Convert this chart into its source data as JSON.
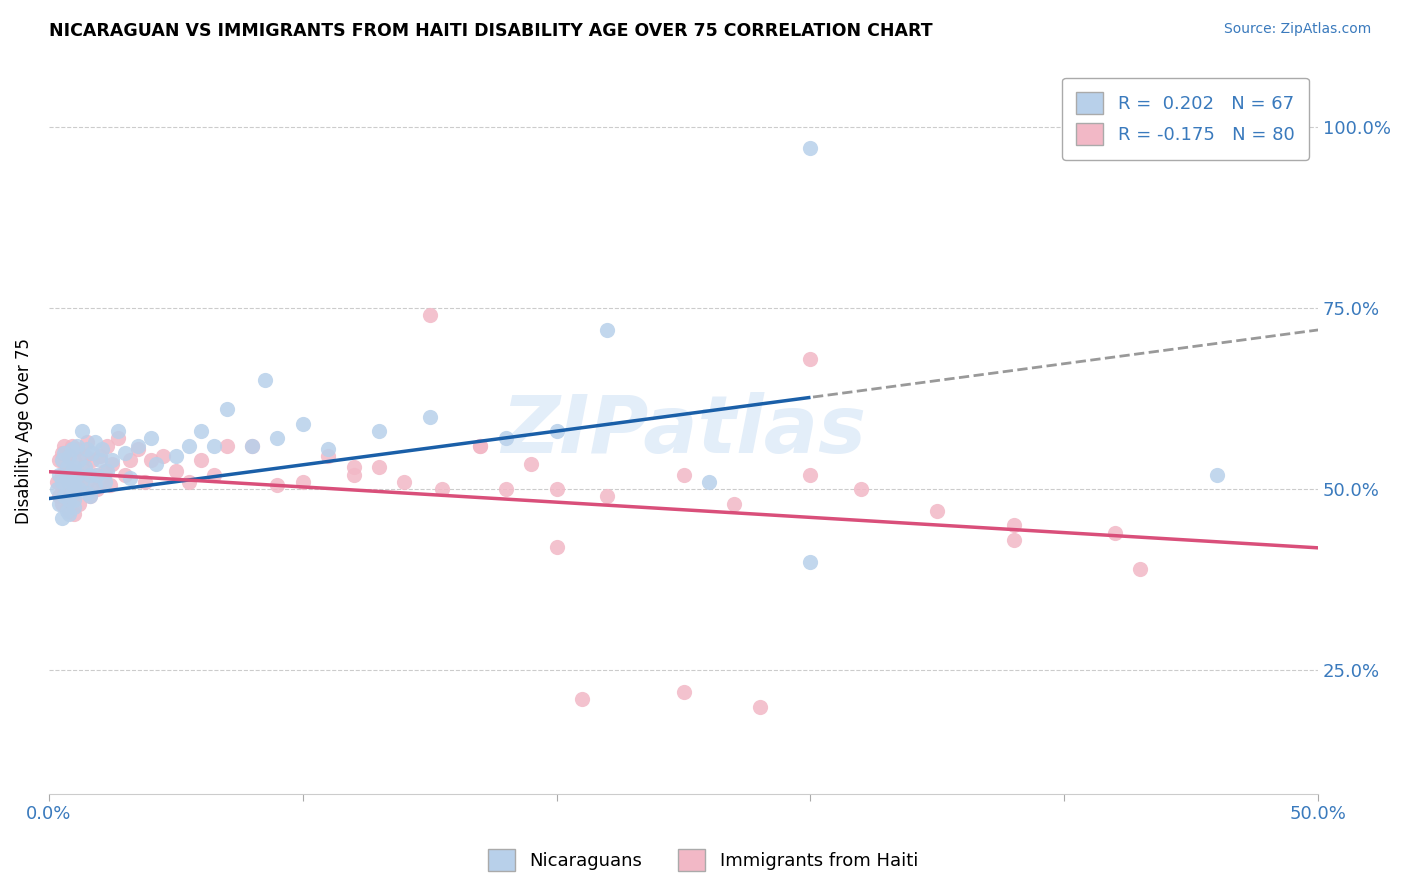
{
  "title": "NICARAGUAN VS IMMIGRANTS FROM HAITI DISABILITY AGE OVER 75 CORRELATION CHART",
  "source": "Source: ZipAtlas.com",
  "ylabel": "Disability Age Over 75",
  "ytick_labels": [
    "25.0%",
    "50.0%",
    "75.0%",
    "100.0%"
  ],
  "ytick_values": [
    0.25,
    0.5,
    0.75,
    1.0
  ],
  "xmin": 0.0,
  "xmax": 0.5,
  "ymin": 0.08,
  "ymax": 1.08,
  "legend_entries": [
    {
      "label": "R =  0.202   N = 67",
      "color": "#b8d0ea"
    },
    {
      "label": "R = -0.175   N = 80",
      "color": "#f2b8c6"
    }
  ],
  "legend_bottom": [
    "Nicaraguans",
    "Immigrants from Haiti"
  ],
  "color_blue": "#b8d0ea",
  "color_pink": "#f2b8c6",
  "line_blue": "#1a5fa8",
  "line_pink": "#d94f7a",
  "line_dashed": "#999999",
  "watermark": "ZIPatlas",
  "blue_intercept": 0.487,
  "blue_slope": 0.465,
  "pink_intercept": 0.524,
  "pink_slope": -0.21,
  "blue_x": [
    0.003,
    0.004,
    0.004,
    0.005,
    0.005,
    0.005,
    0.006,
    0.006,
    0.007,
    0.007,
    0.007,
    0.008,
    0.008,
    0.008,
    0.008,
    0.009,
    0.009,
    0.009,
    0.01,
    0.01,
    0.01,
    0.01,
    0.011,
    0.011,
    0.012,
    0.012,
    0.013,
    0.013,
    0.014,
    0.015,
    0.015,
    0.016,
    0.016,
    0.017,
    0.018,
    0.018,
    0.019,
    0.02,
    0.021,
    0.022,
    0.023,
    0.025,
    0.027,
    0.03,
    0.032,
    0.035,
    0.04,
    0.042,
    0.05,
    0.055,
    0.06,
    0.065,
    0.07,
    0.08,
    0.085,
    0.09,
    0.1,
    0.11,
    0.13,
    0.15,
    0.18,
    0.2,
    0.22,
    0.26,
    0.3,
    0.46,
    0.3
  ],
  "blue_y": [
    0.5,
    0.52,
    0.48,
    0.54,
    0.46,
    0.51,
    0.55,
    0.49,
    0.53,
    0.47,
    0.515,
    0.545,
    0.485,
    0.51,
    0.465,
    0.525,
    0.495,
    0.555,
    0.505,
    0.53,
    0.485,
    0.475,
    0.52,
    0.56,
    0.5,
    0.54,
    0.51,
    0.58,
    0.53,
    0.495,
    0.555,
    0.52,
    0.49,
    0.55,
    0.505,
    0.565,
    0.52,
    0.54,
    0.555,
    0.51,
    0.525,
    0.54,
    0.58,
    0.55,
    0.515,
    0.56,
    0.57,
    0.535,
    0.545,
    0.56,
    0.58,
    0.56,
    0.61,
    0.56,
    0.65,
    0.57,
    0.59,
    0.555,
    0.58,
    0.6,
    0.57,
    0.58,
    0.72,
    0.51,
    0.4,
    0.52,
    0.97
  ],
  "pink_x": [
    0.003,
    0.004,
    0.004,
    0.005,
    0.005,
    0.005,
    0.006,
    0.006,
    0.007,
    0.007,
    0.007,
    0.008,
    0.008,
    0.008,
    0.009,
    0.009,
    0.01,
    0.01,
    0.01,
    0.01,
    0.011,
    0.011,
    0.012,
    0.012,
    0.013,
    0.014,
    0.015,
    0.015,
    0.016,
    0.017,
    0.018,
    0.019,
    0.02,
    0.021,
    0.022,
    0.023,
    0.024,
    0.025,
    0.027,
    0.03,
    0.032,
    0.035,
    0.038,
    0.04,
    0.045,
    0.05,
    0.055,
    0.06,
    0.065,
    0.07,
    0.08,
    0.09,
    0.1,
    0.11,
    0.12,
    0.13,
    0.14,
    0.155,
    0.17,
    0.18,
    0.19,
    0.2,
    0.22,
    0.25,
    0.27,
    0.3,
    0.32,
    0.35,
    0.38,
    0.42,
    0.15,
    0.3,
    0.17,
    0.12,
    0.25,
    0.21,
    0.2,
    0.28,
    0.38,
    0.43
  ],
  "pink_y": [
    0.51,
    0.54,
    0.49,
    0.52,
    0.48,
    0.55,
    0.495,
    0.56,
    0.515,
    0.475,
    0.53,
    0.5,
    0.545,
    0.47,
    0.525,
    0.56,
    0.51,
    0.49,
    0.54,
    0.465,
    0.505,
    0.555,
    0.52,
    0.48,
    0.53,
    0.545,
    0.51,
    0.565,
    0.49,
    0.54,
    0.52,
    0.5,
    0.545,
    0.51,
    0.525,
    0.56,
    0.505,
    0.535,
    0.57,
    0.52,
    0.54,
    0.555,
    0.51,
    0.54,
    0.545,
    0.525,
    0.51,
    0.54,
    0.52,
    0.56,
    0.56,
    0.505,
    0.51,
    0.545,
    0.53,
    0.53,
    0.51,
    0.5,
    0.56,
    0.5,
    0.535,
    0.5,
    0.49,
    0.52,
    0.48,
    0.52,
    0.5,
    0.47,
    0.45,
    0.44,
    0.74,
    0.68,
    0.56,
    0.52,
    0.22,
    0.21,
    0.42,
    0.2,
    0.43,
    0.39
  ]
}
